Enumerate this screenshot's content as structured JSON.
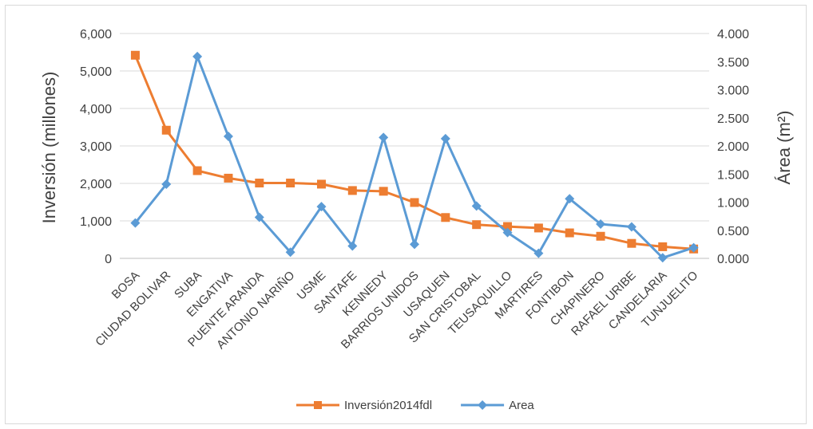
{
  "chart_data": {
    "type": "line",
    "title": "",
    "categories": [
      "BOSA",
      "CIUDAD BOLIVAR",
      "SUBA",
      "ENGATIVA",
      "PUENTE ARANDA",
      "ANTONIO NARIÑO",
      "USME",
      "SANTAFE",
      "KENNEDY",
      "BARRIOS UNIDOS",
      "USAQUEN",
      "SAN CRISTOBAL",
      "TEUSAQUILLO",
      "MARTIRES",
      "FONTIBON",
      "CHAPINERO",
      "RAFAEL URIBE",
      "CANDELARIA",
      "TUNJUELITO"
    ],
    "y_left": {
      "label": "Inversión (millones)",
      "ylim": [
        0,
        6000
      ],
      "ticks": [
        "0",
        "1,000",
        "2,000",
        "3,000",
        "4,000",
        "5,000",
        "6,000"
      ]
    },
    "y_right": {
      "label": "Área (m²)",
      "ylim": [
        0,
        4000
      ],
      "ticks": [
        "0.000",
        "0.500",
        "1.000",
        "1.500",
        "2.000",
        "2.500",
        "3.000",
        "3.500",
        "4.000"
      ]
    },
    "series": [
      {
        "name": "Inversión2014fdl",
        "axis": "left",
        "color": "#ed7d31",
        "marker": "square",
        "values": [
          5420,
          3420,
          2340,
          2140,
          2010,
          2010,
          1980,
          1810,
          1790,
          1490,
          1090,
          900,
          850,
          810,
          680,
          590,
          400,
          310,
          250
        ]
      },
      {
        "name": "Area",
        "axis": "right",
        "color": "#5b9bd5",
        "marker": "diamond",
        "values": [
          630,
          1320,
          3590,
          2170,
          730,
          110,
          920,
          220,
          2150,
          250,
          2130,
          930,
          460,
          90,
          1060,
          610,
          560,
          10,
          190
        ]
      }
    ],
    "gridlines": true,
    "legend_position": "bottom"
  }
}
